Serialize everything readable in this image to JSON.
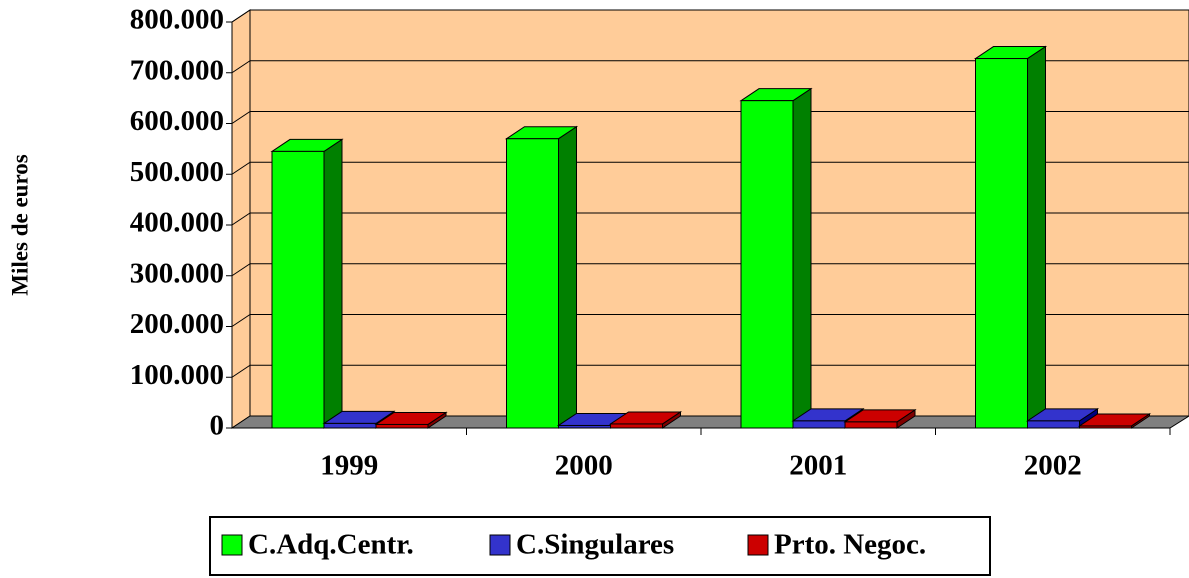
{
  "chart_data": {
    "type": "bar3d",
    "y_label": "Miles de euros",
    "categories": [
      "1999",
      "2000",
      "2001",
      "2002"
    ],
    "series": [
      {
        "name": "C.Adq.Centr.",
        "color": "#00ff00",
        "values": [
          545000,
          570000,
          645000,
          728000
        ]
      },
      {
        "name": "C.Singulares",
        "color": "#3333cc",
        "values": [
          9000,
          5000,
          14000,
          14000
        ]
      },
      {
        "name": "Prto. Negoc.",
        "color": "#cc0000",
        "values": [
          7000,
          8000,
          12000,
          4000
        ]
      }
    ],
    "ylim": [
      0,
      800000
    ],
    "yticks": [
      0,
      {
        "value": 100000,
        "label": "100.000"
      },
      {
        "value": 200000,
        "label": "200.000"
      },
      {
        "value": 300000,
        "label": "300.000"
      },
      {
        "value": 400000,
        "label": "400.000"
      },
      {
        "value": 500000,
        "label": "500.000"
      },
      {
        "value": 600000,
        "label": "600.000"
      },
      {
        "value": 700000,
        "label": "700.000"
      },
      {
        "value": 800000,
        "label": "800.000"
      }
    ],
    "grid": true,
    "legend": "bottom"
  }
}
